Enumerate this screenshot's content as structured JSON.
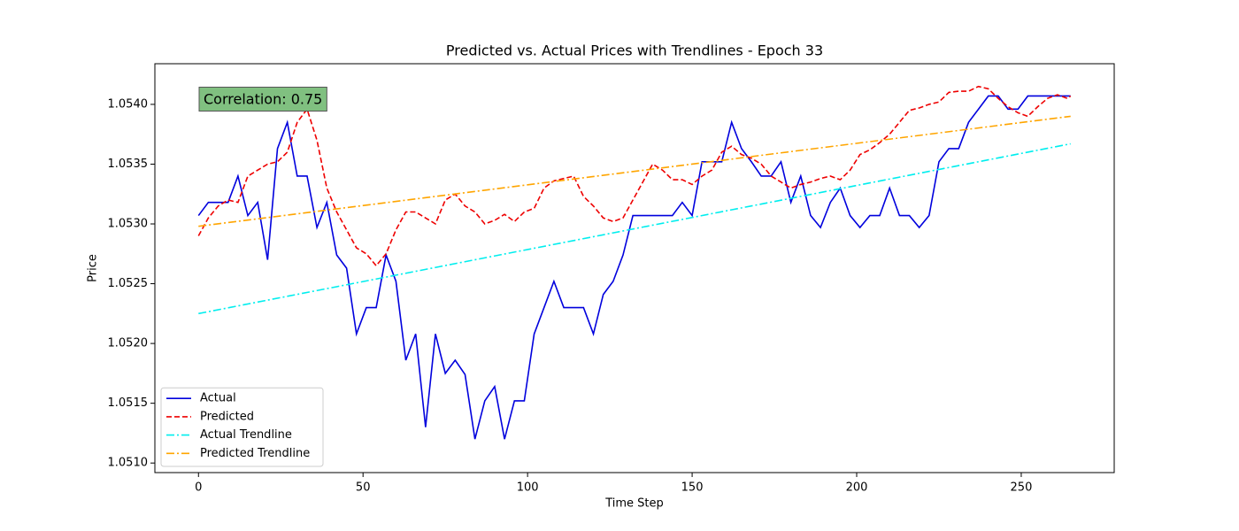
{
  "chart_data": {
    "type": "line",
    "title": "Predicted vs. Actual Prices with Trendlines - Epoch 33",
    "x_label": "Time Step",
    "y_label": "Price",
    "annotation": "Correlation: 0.75",
    "annotation_color": "#80c080",
    "legend_position": "lower left",
    "xlim": [
      -13.25,
      278.25
    ],
    "ylim": [
      1.05092,
      1.05434
    ],
    "xticks": [
      0,
      50,
      100,
      150,
      200,
      250
    ],
    "yticks": [
      {
        "value": 1.051,
        "label": "1.0510"
      },
      {
        "value": 1.0515,
        "label": "1.0515"
      },
      {
        "value": 1.052,
        "label": "1.0520"
      },
      {
        "value": 1.0525,
        "label": "1.0525"
      },
      {
        "value": 1.053,
        "label": "1.0530"
      },
      {
        "value": 1.0535,
        "label": "1.0535"
      },
      {
        "value": 1.054,
        "label": "1.0540"
      }
    ],
    "x": [
      0,
      3,
      6,
      9,
      12,
      15,
      18,
      21,
      24,
      27,
      30,
      33,
      36,
      39,
      42,
      45,
      48,
      51,
      54,
      57,
      60,
      63,
      66,
      69,
      72,
      75,
      78,
      81,
      84,
      87,
      90,
      93,
      96,
      99,
      102,
      105,
      108,
      111,
      114,
      117,
      120,
      123,
      126,
      129,
      132,
      135,
      138,
      141,
      144,
      147,
      150,
      153,
      156,
      159,
      162,
      165,
      168,
      171,
      174,
      177,
      180,
      183,
      186,
      189,
      192,
      195,
      198,
      201,
      204,
      207,
      210,
      213,
      216,
      219,
      222,
      225,
      228,
      231,
      234,
      237,
      240,
      243,
      246,
      249,
      252,
      255,
      258,
      261,
      264,
      265
    ],
    "series": [
      {
        "name": "Actual",
        "color": "#0000dd",
        "linestyle": "solid",
        "values": [
          1.05307,
          1.05318,
          1.05318,
          1.05318,
          1.0534,
          1.05307,
          1.05318,
          1.0527,
          1.05363,
          1.05385,
          1.0534,
          1.0534,
          1.05297,
          1.05318,
          1.05274,
          1.05263,
          1.05208,
          1.0523,
          1.0523,
          1.05274,
          1.05252,
          1.05186,
          1.05208,
          1.0513,
          1.05208,
          1.05175,
          1.05186,
          1.05174,
          1.0512,
          1.05152,
          1.05164,
          1.0512,
          1.05152,
          1.05152,
          1.05208,
          1.0523,
          1.05252,
          1.0523,
          1.0523,
          1.0523,
          1.05208,
          1.05241,
          1.05252,
          1.05274,
          1.05307,
          1.05307,
          1.05307,
          1.05307,
          1.05307,
          1.05318,
          1.05307,
          1.05352,
          1.05352,
          1.05352,
          1.05385,
          1.05363,
          1.05352,
          1.0534,
          1.0534,
          1.05352,
          1.05318,
          1.0534,
          1.05307,
          1.05297,
          1.05318,
          1.0533,
          1.05307,
          1.05297,
          1.05307,
          1.05307,
          1.0533,
          1.05307,
          1.05307,
          1.05297,
          1.05307,
          1.05352,
          1.05363,
          1.05363,
          1.05385,
          1.05396,
          1.05407,
          1.05407,
          1.05396,
          1.05396,
          1.05407,
          1.05407,
          1.05407,
          1.05407,
          1.05407,
          1.05407
        ]
      },
      {
        "name": "Predicted",
        "color": "#ee0000",
        "linestyle": "dashed",
        "values": [
          1.0529,
          1.05305,
          1.05315,
          1.0532,
          1.05318,
          1.0534,
          1.05345,
          1.0535,
          1.05352,
          1.0536,
          1.05385,
          1.05396,
          1.0537,
          1.0533,
          1.0531,
          1.05295,
          1.0528,
          1.05275,
          1.05265,
          1.05275,
          1.05295,
          1.0531,
          1.0531,
          1.05305,
          1.053,
          1.0532,
          1.05325,
          1.05315,
          1.0531,
          1.053,
          1.05303,
          1.05308,
          1.05302,
          1.0531,
          1.05313,
          1.0533,
          1.05336,
          1.05338,
          1.0534,
          1.05323,
          1.05315,
          1.05305,
          1.05302,
          1.05305,
          1.0532,
          1.05335,
          1.0535,
          1.05345,
          1.05337,
          1.05337,
          1.05333,
          1.0534,
          1.05345,
          1.0536,
          1.05365,
          1.05358,
          1.05355,
          1.0535,
          1.0534,
          1.05335,
          1.0533,
          1.05333,
          1.05335,
          1.05338,
          1.0534,
          1.05337,
          1.05345,
          1.05358,
          1.05362,
          1.05368,
          1.05375,
          1.05385,
          1.05395,
          1.05397,
          1.054,
          1.05402,
          1.0541,
          1.05411,
          1.05411,
          1.05415,
          1.05413,
          1.05405,
          1.05398,
          1.05393,
          1.0539,
          1.05398,
          1.05405,
          1.05408,
          1.05405,
          1.05407
        ]
      },
      {
        "name": "Actual Trendline",
        "color": "#00eeee",
        "linestyle": "dashdot",
        "x": [
          0,
          265
        ],
        "values": [
          1.05225,
          1.05367
        ]
      },
      {
        "name": "Predicted Trendline",
        "color": "#ffa500",
        "linestyle": "dashdot",
        "x": [
          0,
          265
        ],
        "values": [
          1.05298,
          1.0539
        ]
      }
    ]
  }
}
